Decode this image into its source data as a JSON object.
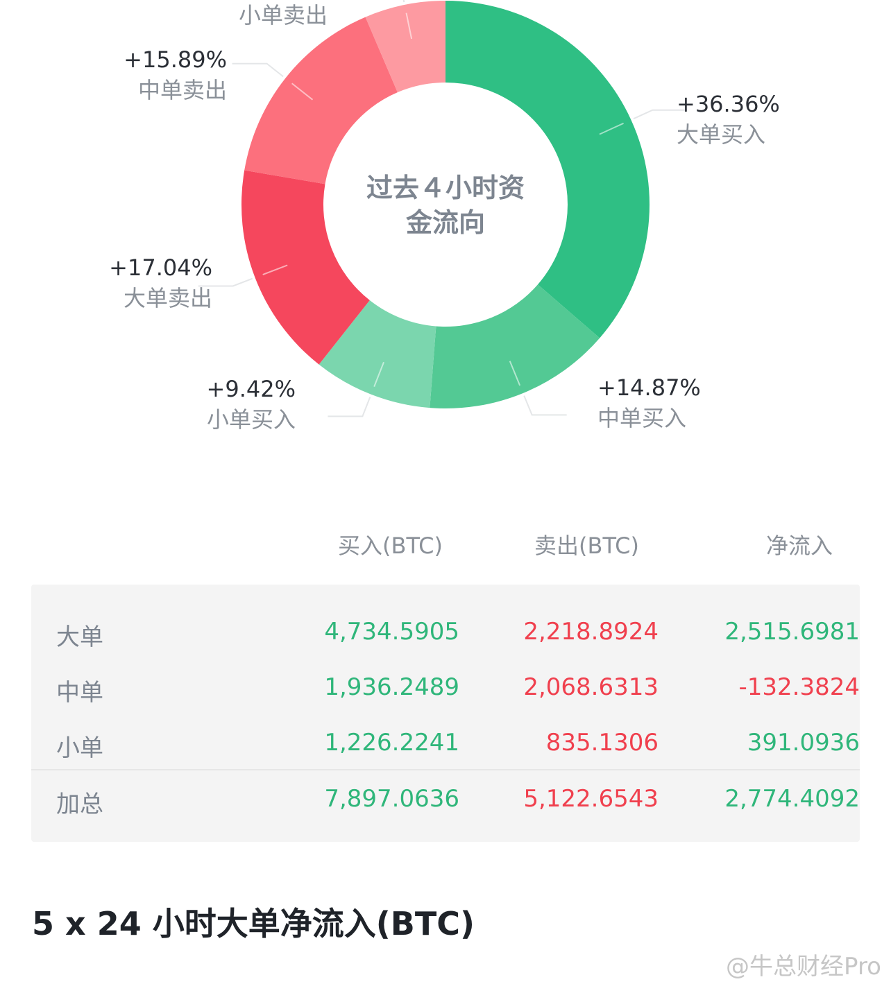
{
  "chart_data": {
    "type": "pie",
    "title": "过去４小时资金流向",
    "title_lines": [
      "过去４小时资",
      "金流向"
    ],
    "slices": [
      {
        "name": "大单买入",
        "label": "+36.36%",
        "value": 36.36,
        "color": "#2fbf84"
      },
      {
        "name": "中单买入",
        "label": "+14.87%",
        "value": 14.87,
        "color": "#53c994"
      },
      {
        "name": "小单买入",
        "label": "+9.42%",
        "value": 9.42,
        "color": "#7bd6ae"
      },
      {
        "name": "大单卖出",
        "label": "+17.04%",
        "value": 17.04,
        "color": "#f5475d"
      },
      {
        "name": "中单卖出",
        "label": "+15.89%",
        "value": 15.89,
        "color": "#fc707d"
      },
      {
        "name": "小单卖出",
        "label": "",
        "value": 6.42,
        "color": "#fd9aa1"
      }
    ]
  },
  "table": {
    "headers": [
      "买入(BTC)",
      "卖出(BTC)",
      "净流入"
    ],
    "rows": [
      {
        "name": "大单",
        "buy": "4,734.5905",
        "sell": "2,218.8924",
        "net": "2,515.6981",
        "net_color": "green"
      },
      {
        "name": "中单",
        "buy": "1,936.2489",
        "sell": "2,068.6313",
        "net": "-132.3824",
        "net_color": "red"
      },
      {
        "name": "小单",
        "buy": "1,226.2241",
        "sell": "835.1306",
        "net": "391.0936",
        "net_color": "green"
      },
      {
        "name": "加总",
        "buy": "7,897.0636",
        "sell": "5,122.6543",
        "net": "2,774.4092",
        "net_color": "green"
      }
    ]
  },
  "section_title": "5 x 24 小时大单净流入(BTC)",
  "watermark": "@牛总财经Pro"
}
